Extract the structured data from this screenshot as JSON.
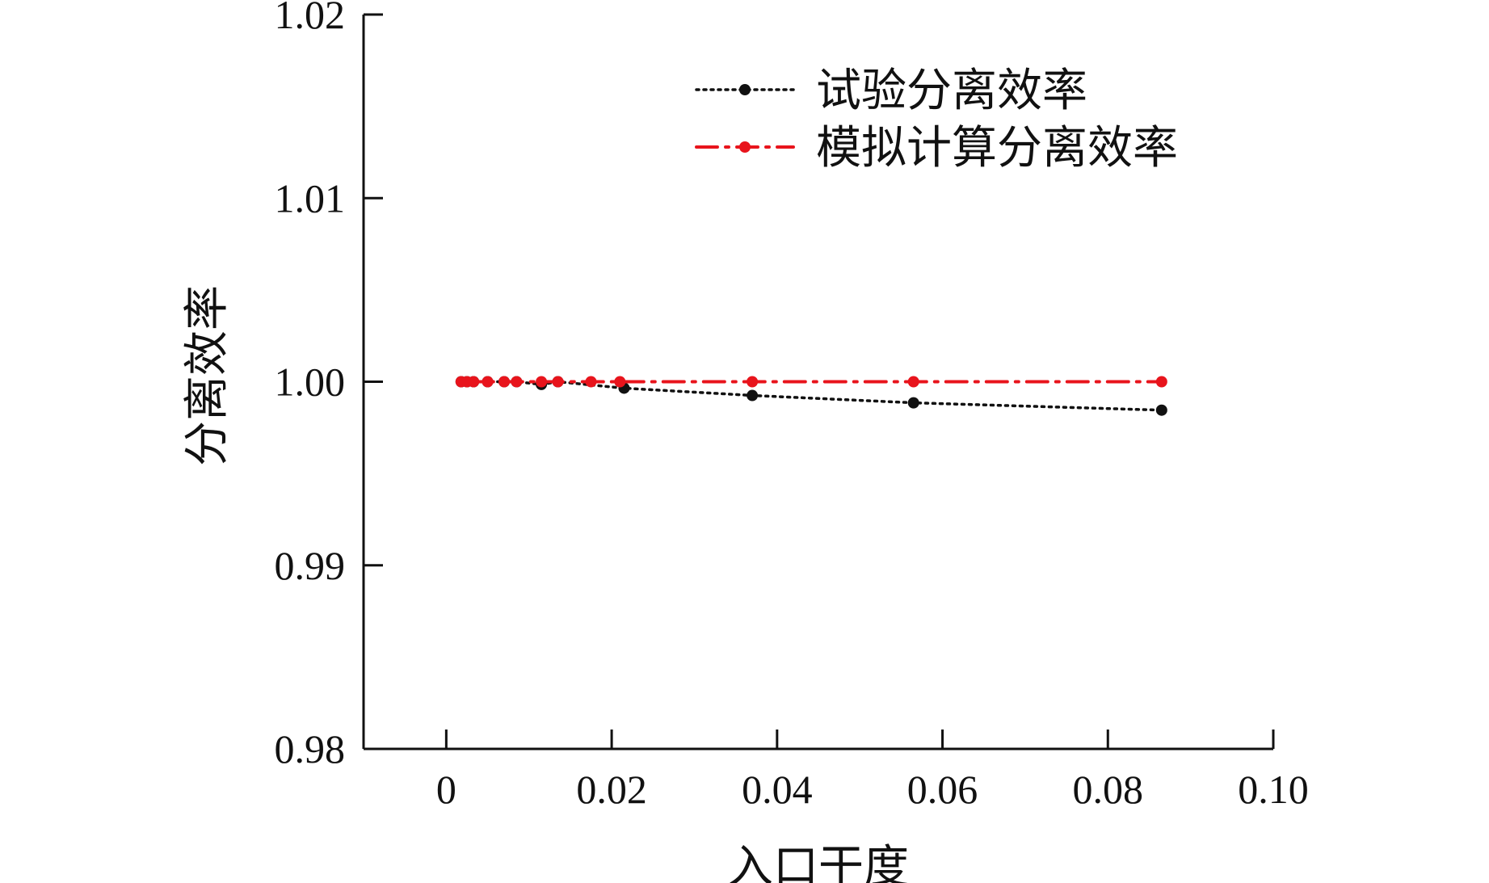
{
  "chart_data": {
    "type": "line",
    "xlabel": "入口干度",
    "ylabel": "分离效率",
    "xlim": [
      -0.01,
      0.1
    ],
    "ylim": [
      0.98,
      1.02
    ],
    "xticks": [
      0,
      0.02,
      0.04,
      0.06,
      0.08,
      0.1
    ],
    "xtick_labels": [
      "0",
      "0.02",
      "0.04",
      "0.06",
      "0.08",
      "0.10"
    ],
    "yticks": [
      0.98,
      0.99,
      1.0,
      1.01,
      1.02
    ],
    "ytick_labels": [
      "0.98",
      "0.99",
      "1.00",
      "1.01",
      "1.02"
    ],
    "legend_position": "top-right",
    "series": [
      {
        "name": "试验分离效率",
        "color": "#111111",
        "line_style": "dotted",
        "x": [
          0.0018,
          0.0025,
          0.0033,
          0.005,
          0.007,
          0.0085,
          0.0115,
          0.0135,
          0.0215,
          0.037,
          0.0565,
          0.0865
        ],
        "y": [
          1.0,
          1.0,
          1.0,
          1.0,
          1.0,
          1.0,
          0.99985,
          1.0,
          0.99965,
          0.99925,
          0.99885,
          0.99845
        ]
      },
      {
        "name": "模拟计算分离效率",
        "color": "#e8141c",
        "line_style": "dash-dot",
        "x": [
          0.0018,
          0.0025,
          0.0033,
          0.005,
          0.007,
          0.0085,
          0.0115,
          0.0135,
          0.0175,
          0.021,
          0.037,
          0.0565,
          0.0865
        ],
        "y": [
          1.0,
          1.0,
          1.0,
          1.0,
          1.0,
          1.0,
          1.0,
          1.0,
          1.0,
          1.0,
          1.0,
          1.0,
          1.0
        ]
      }
    ]
  }
}
